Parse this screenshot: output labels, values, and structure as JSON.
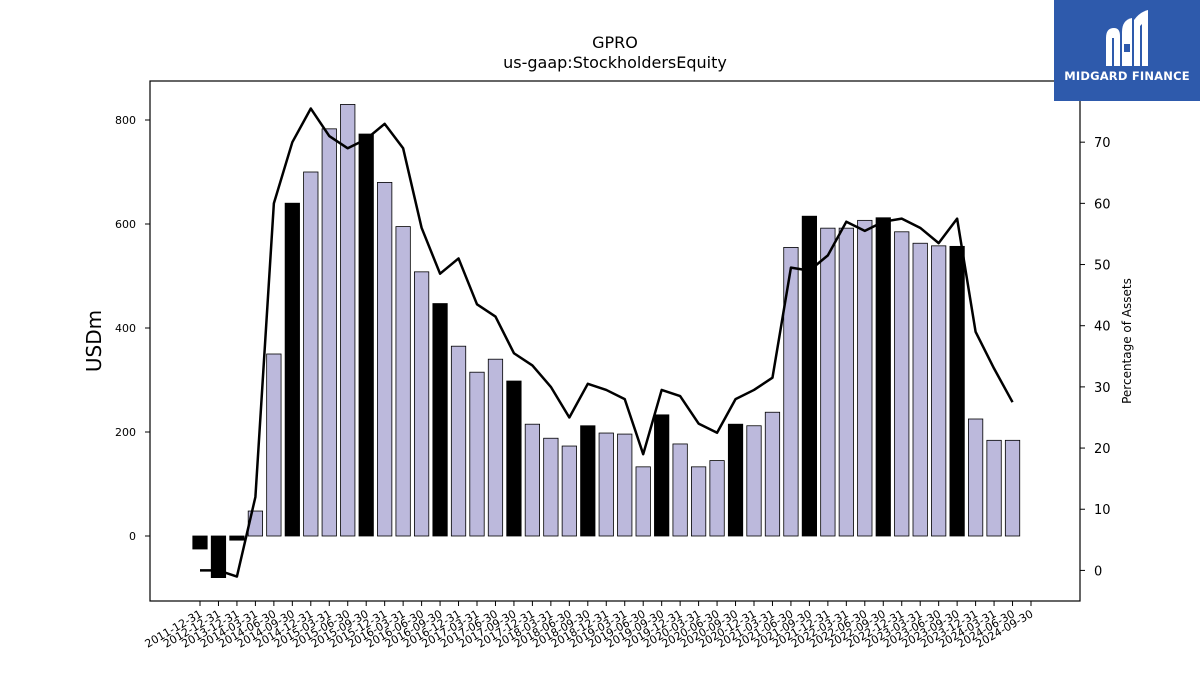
{
  "brand": {
    "name": "MIDGARD FINANCE",
    "color": "#2e5aac",
    "icon": "midgard-logo-icon"
  },
  "chart_data": {
    "type": "bar",
    "title": "GPRO",
    "subtitle": "us-gaap:StockholdersEquity",
    "ylabel": "USDm",
    "y2label": "Percentage of Assets",
    "ylim": [
      -125,
      875
    ],
    "y2lim": [
      -5,
      80
    ],
    "yticks": [
      0,
      200,
      400,
      600,
      800
    ],
    "y2ticks": [
      0,
      10,
      20,
      30,
      40,
      50,
      60,
      70
    ],
    "grid": false,
    "colors": {
      "bar_default": "#bcb9dc",
      "bar_highlight": "#000000",
      "line": "#000000"
    },
    "categories": [
      "2011-12-31",
      "2012-12-31",
      "2013-12-31",
      "2014-03-31",
      "2014-06-30",
      "2014-09-30",
      "2014-12-31",
      "2015-03-31",
      "2015-06-30",
      "2015-09-30",
      "2015-12-31",
      "2016-03-31",
      "2016-06-30",
      "2016-09-30",
      "2016-12-31",
      "2017-03-31",
      "2017-06-30",
      "2017-09-30",
      "2017-12-31",
      "2018-03-31",
      "2018-06-30",
      "2018-09-30",
      "2018-12-31",
      "2019-03-31",
      "2019-06-30",
      "2019-09-30",
      "2019-12-31",
      "2020-03-31",
      "2020-06-30",
      "2020-09-30",
      "2020-12-31",
      "2021-03-31",
      "2021-06-30",
      "2021-09-30",
      "2021-12-31",
      "2022-03-31",
      "2022-06-30",
      "2022-09-30",
      "2022-12-31",
      "2023-03-31",
      "2023-06-30",
      "2023-09-30",
      "2023-12-31",
      "2024-03-31",
      "2024-06-30",
      "2024-09-30"
    ],
    "series": [
      {
        "type": "bar",
        "values": [
          -25,
          -80,
          -8,
          48,
          350,
          640,
          700,
          783,
          830,
          773,
          680,
          595,
          508,
          447,
          365,
          315,
          340,
          298,
          215,
          188,
          173,
          212,
          198,
          196,
          133,
          233,
          177,
          133,
          145,
          215,
          212,
          238,
          555,
          615,
          592,
          592,
          607,
          612,
          585,
          563,
          558,
          557,
          225,
          184,
          184,
          null
        ],
        "highlight": [
          true,
          true,
          true,
          false,
          false,
          true,
          false,
          false,
          false,
          true,
          false,
          false,
          false,
          true,
          false,
          false,
          false,
          true,
          false,
          false,
          false,
          true,
          false,
          false,
          false,
          true,
          false,
          false,
          false,
          true,
          false,
          false,
          false,
          true,
          false,
          false,
          false,
          true,
          false,
          false,
          false,
          true,
          false,
          false,
          false,
          false
        ]
      },
      {
        "type": "line",
        "axis": "right",
        "values": [
          0,
          0,
          -1,
          12,
          60,
          70,
          75.5,
          71,
          69,
          70.5,
          73,
          69,
          56,
          48.5,
          51,
          43.5,
          41.5,
          35.5,
          33.5,
          30,
          25,
          30.5,
          29.5,
          28,
          19,
          29.5,
          28.5,
          24,
          22.5,
          28,
          29.5,
          31.5,
          49.5,
          49,
          51.5,
          57,
          55.5,
          57,
          57.5,
          56,
          53.5,
          57.5,
          39,
          33,
          27.5,
          null
        ]
      }
    ]
  }
}
